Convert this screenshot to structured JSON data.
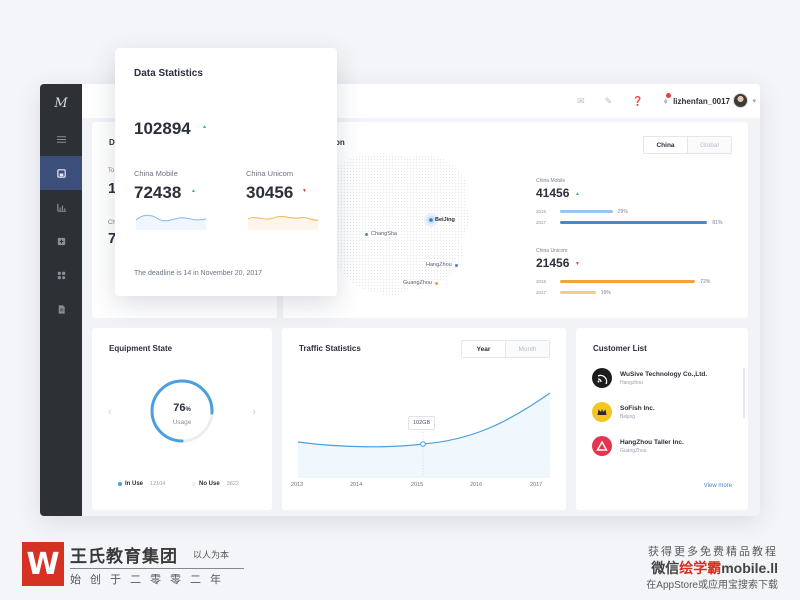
{
  "topbar": {
    "username": "lizhenfan_0017"
  },
  "sidebar": {
    "logo": "M"
  },
  "popup": {
    "title": "Data Statistics",
    "total": "102894",
    "mobile_label": "China Mobile",
    "mobile_value": "72438",
    "unicom_label": "China Unicom",
    "unicom_value": "30456",
    "note": "The deadline is 14 in November 20, 2017"
  },
  "background_stats": {
    "title_fragment": "Da",
    "label_fragment": "To",
    "value_fragment_1": "1",
    "value_fragment_2": "7",
    "label_fragment_2": "Ch"
  },
  "location": {
    "title_fragment": "on",
    "tabs": [
      "China",
      "Global"
    ],
    "cities": [
      "BeiJing",
      "ChangSha",
      "HangZhou",
      "GuangZhou"
    ],
    "mobile": {
      "name": "China Mobile",
      "value": "41456",
      "bars": [
        {
          "year": "2016",
          "pct": "29%",
          "level": 0.29
        },
        {
          "year": "2017",
          "pct": "81%",
          "level": 0.81
        }
      ]
    },
    "unicom": {
      "name": "China Unicom",
      "value": "21456",
      "bars": [
        {
          "year": "2016",
          "pct": "72%",
          "level": 0.72
        },
        {
          "year": "2017",
          "pct": "19%",
          "level": 0.19
        }
      ]
    }
  },
  "equipment": {
    "title": "Equipment State",
    "usage_value": "76",
    "usage_unit": "%",
    "usage_label": "Usage",
    "usage_level": 0.76,
    "in_use_label": "In Use",
    "in_use_count": "12104",
    "no_use_label": "No Use",
    "no_use_count": "3822"
  },
  "traffic": {
    "title": "Traffic Statistics",
    "tabs": [
      "Year",
      "Month"
    ],
    "tooltip": "102GB",
    "years": [
      "2013",
      "2014",
      "2015",
      "2016",
      "2017"
    ]
  },
  "customers": {
    "title": "Customer List",
    "items": [
      {
        "name": "WuSive Technology Co.,Ltd.",
        "city": "Hangzhou",
        "color": "#1d1d1d"
      },
      {
        "name": "SoFish Inc.",
        "city": "Beijing",
        "color": "#f3c623"
      },
      {
        "name": "HangZhou Taller Inc.",
        "city": "GuangZhou",
        "color": "#e2364f"
      }
    ],
    "view_more": "View more"
  },
  "watermark": {
    "logo_letter": "W",
    "org_name": "王氏教育集团",
    "org_sub": "以人为本",
    "slogan": "始创于二零零二年",
    "right_line1": "获得更多免费精品教程",
    "right_line2_a": "微信",
    "right_line2_b": "绘学霸",
    "right_line2_c": "mobile.ll",
    "right_line3": "在AppStore或应用宝搜索下载"
  },
  "colors": {
    "accent": "#4a86d8",
    "orange": "#f2a33a",
    "sidebar": "#2d3035",
    "active": "#3c4f7a",
    "up": "#2ab38c",
    "down": "#e5423b"
  }
}
